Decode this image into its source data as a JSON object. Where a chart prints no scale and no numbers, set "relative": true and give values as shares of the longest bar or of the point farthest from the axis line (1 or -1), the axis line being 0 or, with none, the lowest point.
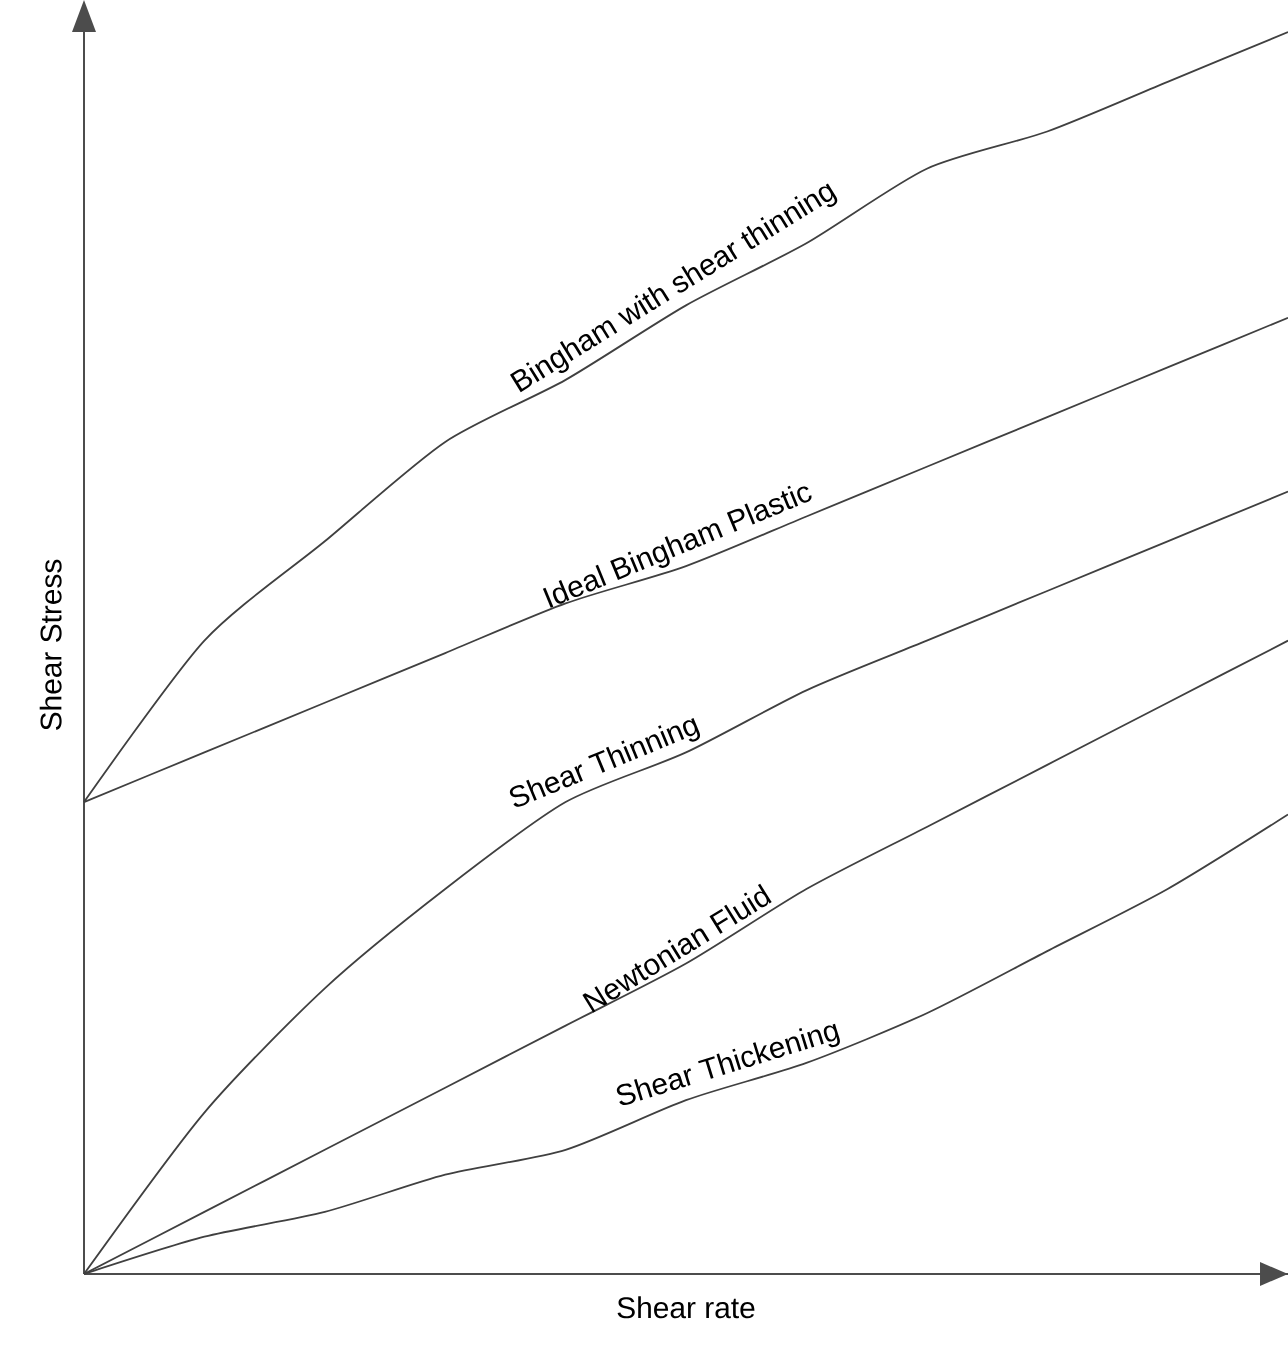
{
  "chart_data": {
    "type": "line",
    "relative": true,
    "xlabel": "Shear rate",
    "ylabel": "Shear Stress",
    "categories": [
      null,
      null,
      null,
      null,
      null,
      null,
      null,
      null,
      null,
      null,
      null
    ],
    "series": [
      {
        "name": "Bingham with shear thinning",
        "color": "#404040",
        "values": [
          0.38,
          0.51,
          0.59,
          0.67,
          0.72,
          0.78,
          0.83,
          0.89,
          0.92,
          0.96,
          1
        ]
      },
      {
        "name": "Ideal Bingham Plastic",
        "color": "#404040",
        "values": [
          0.38,
          0.42,
          0.46,
          0.5,
          0.54,
          0.57,
          0.61,
          0.65,
          0.69,
          0.73,
          0.77
        ]
      },
      {
        "name": "Shear Thinning",
        "color": "#404040",
        "values": [
          0,
          0.13,
          0.23,
          0.31,
          0.38,
          0.42,
          0.47,
          0.51,
          0.55,
          0.59,
          0.63
        ]
      },
      {
        "name": "Newtonian Fluid",
        "color": "#404040",
        "values": [
          0,
          0.05,
          0.1,
          0.15,
          0.2,
          0.25,
          0.31,
          0.36,
          0.41,
          0.46,
          0.51
        ]
      },
      {
        "name": "Shear Thickening",
        "color": "#404040",
        "values": [
          0,
          0.03,
          0.05,
          0.08,
          0.1,
          0.14,
          0.17,
          0.21,
          0.26,
          0.31,
          0.37
        ]
      }
    ]
  }
}
